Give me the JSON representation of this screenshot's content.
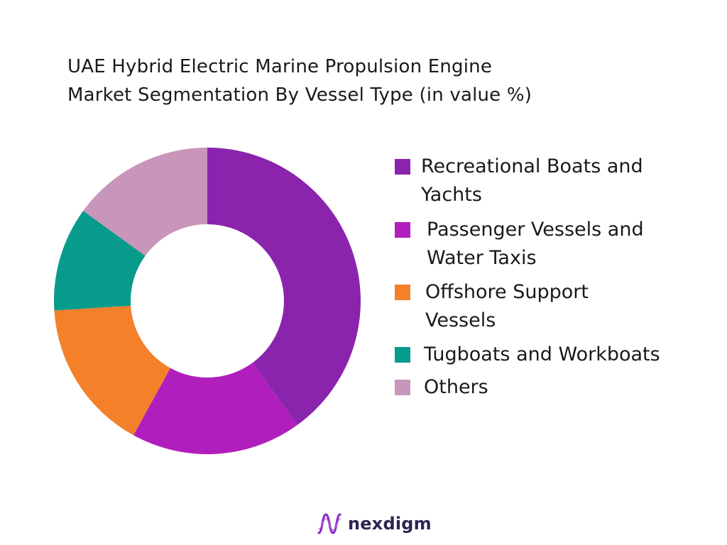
{
  "chart_data": {
    "type": "pie",
    "title": [
      "UAE Hybrid Electric Marine Propulsion Engine",
      "Market Segmentation By Vessel Type (in value %)"
    ],
    "donut": true,
    "legend_position": "right",
    "categories": [
      "Recreational Boats and Yachts",
      "Passenger Vessels and Water Taxis",
      "Offshore Support Vessels",
      "Tugboats and Workboats",
      "Others"
    ],
    "values": [
      40,
      18,
      16,
      11,
      15
    ],
    "colors": [
      "#8a24ad",
      "#b01fbd",
      "#f4802a",
      "#079b8b",
      "#c996bb"
    ]
  },
  "brand": {
    "name": "nexdigm",
    "logo_icon": "nexdigm-wave-icon",
    "logo_color": "#8a2bc8"
  }
}
